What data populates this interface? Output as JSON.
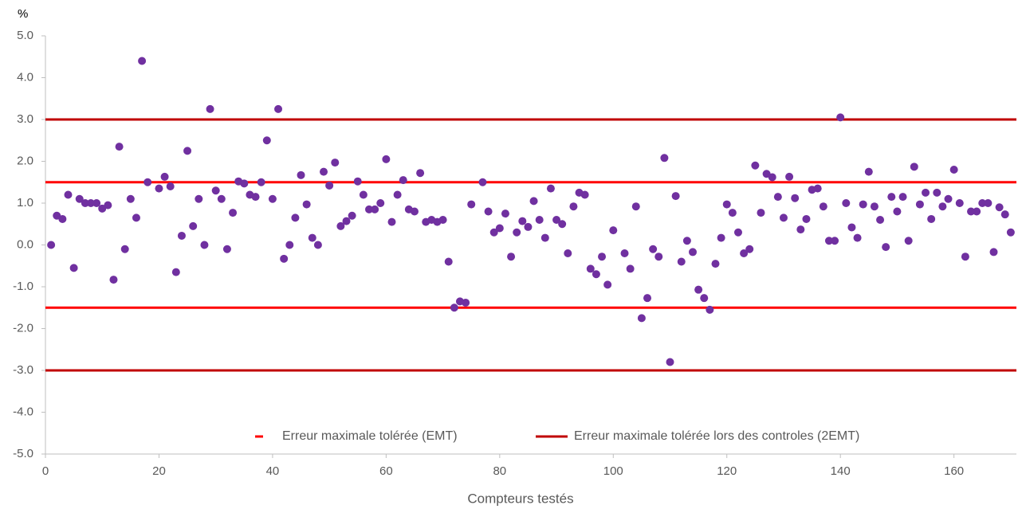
{
  "chart_data": {
    "type": "scatter",
    "y_label": "%",
    "x_label": "Compteurs testés",
    "color": "#7030a0",
    "xlim": [
      0,
      171
    ],
    "xticks": [
      0,
      20,
      40,
      60,
      80,
      100,
      120,
      140,
      160
    ],
    "ylim": [
      -5,
      5
    ],
    "yticks": [
      {
        "value": 5,
        "label": "5.0"
      },
      {
        "value": 4,
        "label": "4.0"
      },
      {
        "value": 3,
        "label": "3.0"
      },
      {
        "value": 2,
        "label": "2.0"
      },
      {
        "value": 1,
        "label": "1.0"
      },
      {
        "value": 0,
        "label": "0.0"
      },
      {
        "value": -1,
        "label": "-1.0"
      },
      {
        "value": -2,
        "label": "-2.0"
      },
      {
        "value": -3,
        "label": "-3.0"
      },
      {
        "value": -4,
        "label": "-4.0"
      },
      {
        "value": -5,
        "label": "-5.0"
      }
    ],
    "x": [
      1,
      2,
      3,
      4,
      5,
      6,
      7,
      8,
      9,
      10,
      11,
      12,
      13,
      14,
      15,
      16,
      17,
      18,
      20,
      21,
      22,
      23,
      24,
      25,
      26,
      27,
      28,
      29,
      30,
      31,
      32,
      33,
      34,
      35,
      36,
      37,
      38,
      39,
      40,
      41,
      42,
      43,
      44,
      45,
      46,
      47,
      48,
      49,
      50,
      51,
      52,
      53,
      54,
      55,
      56,
      57,
      58,
      59,
      60,
      61,
      62,
      63,
      64,
      65,
      66,
      67,
      68,
      69,
      70,
      71,
      72,
      73,
      74,
      75,
      77,
      78,
      79,
      80,
      81,
      82,
      83,
      84,
      85,
      86,
      87,
      88,
      89,
      90,
      91,
      92,
      93,
      94,
      95,
      96,
      97,
      98,
      99,
      100,
      102,
      103,
      104,
      105,
      106,
      107,
      108,
      109,
      110,
      111,
      112,
      113,
      114,
      115,
      116,
      117,
      118,
      119,
      120,
      121,
      122,
      123,
      124,
      125,
      126,
      127,
      128,
      129,
      130,
      131,
      132,
      133,
      134,
      135,
      136,
      137,
      138,
      139,
      140,
      141,
      142,
      143,
      144,
      145,
      146,
      147,
      148,
      149,
      150,
      151,
      152,
      153,
      154,
      155,
      156,
      157,
      158,
      159,
      160,
      161,
      162,
      163,
      164,
      165,
      166,
      167,
      168,
      169,
      170
    ],
    "values": [
      0.0,
      0.7,
      0.62,
      1.2,
      -0.55,
      1.1,
      1.0,
      1.0,
      1.0,
      0.87,
      0.95,
      -0.83,
      2.35,
      -0.1,
      1.1,
      0.65,
      4.4,
      1.5,
      1.35,
      1.63,
      1.4,
      -0.65,
      0.22,
      2.25,
      0.45,
      1.1,
      0.0,
      3.25,
      1.3,
      1.1,
      -0.1,
      0.77,
      1.52,
      1.47,
      1.2,
      1.15,
      1.5,
      2.5,
      1.1,
      3.25,
      -0.33,
      0.0,
      0.65,
      1.67,
      0.97,
      0.17,
      0.0,
      1.75,
      1.42,
      1.97,
      0.45,
      0.57,
      0.7,
      1.52,
      1.2,
      0.85,
      0.85,
      1.0,
      2.05,
      0.55,
      1.2,
      1.55,
      0.85,
      0.8,
      1.72,
      0.55,
      0.6,
      0.55,
      0.6,
      -0.4,
      -1.5,
      -1.35,
      -1.38,
      0.97,
      1.5,
      0.8,
      0.3,
      0.4,
      0.75,
      -0.28,
      0.3,
      0.57,
      0.43,
      1.05,
      0.6,
      0.17,
      1.35,
      0.6,
      0.5,
      -0.2,
      0.92,
      1.25,
      1.2,
      -0.57,
      -0.7,
      -0.28,
      -0.95,
      0.35,
      -0.2,
      -0.57,
      0.92,
      -1.75,
      -1.27,
      -0.1,
      -0.28,
      2.08,
      -2.8,
      1.17,
      -0.4,
      0.1,
      -0.17,
      -1.07,
      -1.27,
      -1.55,
      -0.45,
      0.17,
      0.97,
      0.77,
      0.3,
      -0.2,
      -0.1,
      1.9,
      0.77,
      1.7,
      1.62,
      1.15,
      0.65,
      1.63,
      1.12,
      0.37,
      0.62,
      1.32,
      1.35,
      0.92,
      0.1,
      0.1,
      3.05,
      1.0,
      0.42,
      0.17,
      0.97,
      1.75,
      0.92,
      0.6,
      -0.05,
      1.15,
      0.8,
      1.15,
      0.1,
      1.87,
      0.97,
      1.25,
      0.62,
      1.25,
      0.92,
      1.1,
      1.8,
      1.0,
      -0.28,
      0.8,
      0.8,
      1.0,
      1.0,
      -0.17,
      0.9,
      0.73,
      0.3
    ],
    "lines": [
      {
        "name": "Erreur maximale tolérée (EMT)",
        "color": "#ff0000",
        "values": [
          1.5,
          -1.5
        ]
      },
      {
        "name": "Erreur maximale tolérée lors des controles (2EMT)",
        "color": "#c00000",
        "values": [
          3,
          -3
        ]
      }
    ]
  }
}
